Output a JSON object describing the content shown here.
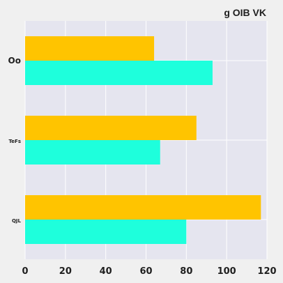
{
  "chart_data": {
    "type": "bar",
    "orientation": "horizontal",
    "title": "g  OIB VK",
    "xlabel": "",
    "ylabel": "",
    "categories": [
      "Oo",
      "TeFs",
      "QJL"
    ],
    "series": [
      {
        "color": "#ffc400",
        "values": [
          64,
          85,
          117
        ]
      },
      {
        "color": "#1effdc",
        "values": [
          93,
          67,
          80
        ]
      }
    ],
    "xlim": [
      0,
      120
    ],
    "xticks": [
      0,
      20,
      40,
      60,
      80,
      100,
      120
    ],
    "grid": true,
    "legend": "none"
  }
}
